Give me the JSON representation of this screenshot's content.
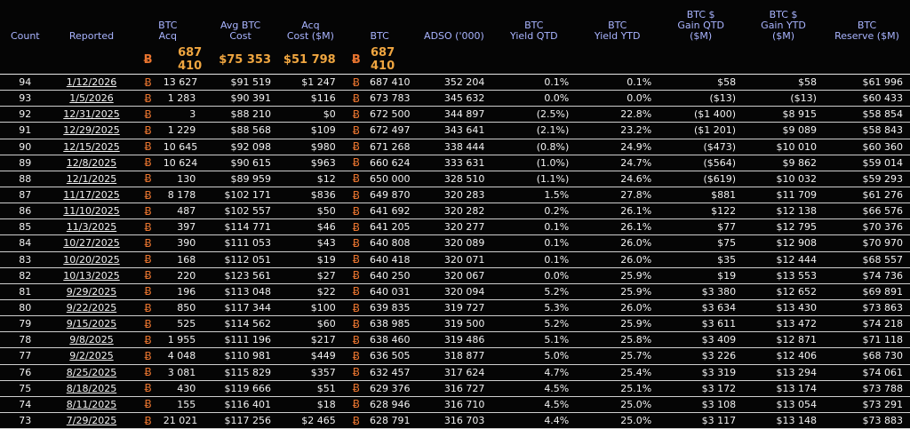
{
  "headers": {
    "count": "Count",
    "reported": "Reported",
    "btc_acq": [
      "BTC",
      "Acq"
    ],
    "avg_cost": [
      "Avg BTC",
      "Cost"
    ],
    "acq_cost": [
      "Acq",
      "Cost ($M)"
    ],
    "btc": "BTC",
    "adso": "ADSO ('000)",
    "yield_qtd": [
      "BTC",
      "Yield QTD"
    ],
    "yield_ytd": [
      "BTC",
      "Yield YTD"
    ],
    "gain_qtd": [
      "BTC $",
      "Gain QTD",
      "($M)"
    ],
    "gain_ytd": [
      "BTC $",
      "Gain YTD",
      "($M)"
    ],
    "reserve": [
      "BTC",
      "Reserve ($M)"
    ]
  },
  "btc_symbol": "Ƀ",
  "summary": {
    "btc_acq": "687 410",
    "avg_cost": "$75 353",
    "acq_cost": "$51 798",
    "btc": "687 410"
  },
  "rows": [
    {
      "count": "94",
      "date": "1/12/2026",
      "acq": "13 627",
      "avg": "$91 519",
      "cost": "$1 247",
      "btc": "687 410",
      "adso": "352 204",
      "yqtd": "0.1%",
      "yytd": "0.1%",
      "gqtd": "$58",
      "gytd": "$58",
      "res": "$61 996"
    },
    {
      "count": "93",
      "date": "1/5/2026",
      "acq": "1 283",
      "avg": "$90 391",
      "cost": "$116",
      "btc": "673 783",
      "adso": "345 632",
      "yqtd": "0.0%",
      "yytd": "0.0%",
      "gqtd": "($13)",
      "gytd": "($13)",
      "res": "$60 433"
    },
    {
      "count": "92",
      "date": "12/31/2025",
      "acq": "3",
      "avg": "$88 210",
      "cost": "$0",
      "btc": "672 500",
      "adso": "344 897",
      "yqtd": "(2.5%)",
      "yytd": "22.8%",
      "gqtd": "($1 400)",
      "gytd": "$8 915",
      "res": "$58 854"
    },
    {
      "count": "91",
      "date": "12/29/2025",
      "acq": "1 229",
      "avg": "$88 568",
      "cost": "$109",
      "btc": "672 497",
      "adso": "343 641",
      "yqtd": "(2.1%)",
      "yytd": "23.2%",
      "gqtd": "($1 201)",
      "gytd": "$9 089",
      "res": "$58 843"
    },
    {
      "count": "90",
      "date": "12/15/2025",
      "acq": "10 645",
      "avg": "$92 098",
      "cost": "$980",
      "btc": "671 268",
      "adso": "338 444",
      "yqtd": "(0.8%)",
      "yytd": "24.9%",
      "gqtd": "($473)",
      "gytd": "$10 010",
      "res": "$60 360"
    },
    {
      "count": "89",
      "date": "12/8/2025",
      "acq": "10 624",
      "avg": "$90 615",
      "cost": "$963",
      "btc": "660 624",
      "adso": "333 631",
      "yqtd": "(1.0%)",
      "yytd": "24.7%",
      "gqtd": "($564)",
      "gytd": "$9 862",
      "res": "$59 014"
    },
    {
      "count": "88",
      "date": "12/1/2025",
      "acq": "130",
      "avg": "$89 959",
      "cost": "$12",
      "btc": "650 000",
      "adso": "328 510",
      "yqtd": "(1.1%)",
      "yytd": "24.6%",
      "gqtd": "($619)",
      "gytd": "$10 032",
      "res": "$59 293"
    },
    {
      "count": "87",
      "date": "11/17/2025",
      "acq": "8 178",
      "avg": "$102 171",
      "cost": "$836",
      "btc": "649 870",
      "adso": "320 283",
      "yqtd": "1.5%",
      "yytd": "27.8%",
      "gqtd": "$881",
      "gytd": "$11 709",
      "res": "$61 276"
    },
    {
      "count": "86",
      "date": "11/10/2025",
      "acq": "487",
      "avg": "$102 557",
      "cost": "$50",
      "btc": "641 692",
      "adso": "320 282",
      "yqtd": "0.2%",
      "yytd": "26.1%",
      "gqtd": "$122",
      "gytd": "$12 138",
      "res": "$66 576"
    },
    {
      "count": "85",
      "date": "11/3/2025",
      "acq": "397",
      "avg": "$114 771",
      "cost": "$46",
      "btc": "641 205",
      "adso": "320 277",
      "yqtd": "0.1%",
      "yytd": "26.1%",
      "gqtd": "$77",
      "gytd": "$12 795",
      "res": "$70 376"
    },
    {
      "count": "84",
      "date": "10/27/2025",
      "acq": "390",
      "avg": "$111 053",
      "cost": "$43",
      "btc": "640 808",
      "adso": "320 089",
      "yqtd": "0.1%",
      "yytd": "26.0%",
      "gqtd": "$75",
      "gytd": "$12 908",
      "res": "$70 970"
    },
    {
      "count": "83",
      "date": "10/20/2025",
      "acq": "168",
      "avg": "$112 051",
      "cost": "$19",
      "btc": "640 418",
      "adso": "320 071",
      "yqtd": "0.1%",
      "yytd": "26.0%",
      "gqtd": "$35",
      "gytd": "$12 444",
      "res": "$68 557"
    },
    {
      "count": "82",
      "date": "10/13/2025",
      "acq": "220",
      "avg": "$123 561",
      "cost": "$27",
      "btc": "640 250",
      "adso": "320 067",
      "yqtd": "0.0%",
      "yytd": "25.9%",
      "gqtd": "$19",
      "gytd": "$13 553",
      "res": "$74 736"
    },
    {
      "count": "81",
      "date": "9/29/2025",
      "acq": "196",
      "avg": "$113 048",
      "cost": "$22",
      "btc": "640 031",
      "adso": "320 094",
      "yqtd": "5.2%",
      "yytd": "25.9%",
      "gqtd": "$3 380",
      "gytd": "$12 652",
      "res": "$69 891"
    },
    {
      "count": "80",
      "date": "9/22/2025",
      "acq": "850",
      "avg": "$117 344",
      "cost": "$100",
      "btc": "639 835",
      "adso": "319 727",
      "yqtd": "5.3%",
      "yytd": "26.0%",
      "gqtd": "$3 634",
      "gytd": "$13 430",
      "res": "$73 863"
    },
    {
      "count": "79",
      "date": "9/15/2025",
      "acq": "525",
      "avg": "$114 562",
      "cost": "$60",
      "btc": "638 985",
      "adso": "319 500",
      "yqtd": "5.2%",
      "yytd": "25.9%",
      "gqtd": "$3 611",
      "gytd": "$13 472",
      "res": "$74 218"
    },
    {
      "count": "78",
      "date": "9/8/2025",
      "acq": "1 955",
      "avg": "$111 196",
      "cost": "$217",
      "btc": "638 460",
      "adso": "319 486",
      "yqtd": "5.1%",
      "yytd": "25.8%",
      "gqtd": "$3 409",
      "gytd": "$12 871",
      "res": "$71 118"
    },
    {
      "count": "77",
      "date": "9/2/2025",
      "acq": "4 048",
      "avg": "$110 981",
      "cost": "$449",
      "btc": "636 505",
      "adso": "318 877",
      "yqtd": "5.0%",
      "yytd": "25.7%",
      "gqtd": "$3 226",
      "gytd": "$12 406",
      "res": "$68 730"
    },
    {
      "count": "76",
      "date": "8/25/2025",
      "acq": "3 081",
      "avg": "$115 829",
      "cost": "$357",
      "btc": "632 457",
      "adso": "317 624",
      "yqtd": "4.7%",
      "yytd": "25.4%",
      "gqtd": "$3 319",
      "gytd": "$13 294",
      "res": "$74 061"
    },
    {
      "count": "75",
      "date": "8/18/2025",
      "acq": "430",
      "avg": "$119 666",
      "cost": "$51",
      "btc": "629 376",
      "adso": "316 727",
      "yqtd": "4.5%",
      "yytd": "25.1%",
      "gqtd": "$3 172",
      "gytd": "$13 174",
      "res": "$73 788"
    },
    {
      "count": "74",
      "date": "8/11/2025",
      "acq": "155",
      "avg": "$116 401",
      "cost": "$18",
      "btc": "628 946",
      "adso": "316 710",
      "yqtd": "4.5%",
      "yytd": "25.0%",
      "gqtd": "$3 108",
      "gytd": "$13 054",
      "res": "$73 291"
    },
    {
      "count": "73",
      "date": "7/29/2025",
      "acq": "21 021",
      "avg": "$117 256",
      "cost": "$2 465",
      "btc": "628 791",
      "adso": "316 703",
      "yqtd": "4.4%",
      "yytd": "25.0%",
      "gqtd": "$3 117",
      "gytd": "$13 148",
      "res": "$73 883"
    }
  ],
  "colors": {
    "header": "#a9b4ff",
    "btc_symbol": "#e8742f",
    "summary": "#f0a640",
    "background": "#050505"
  }
}
